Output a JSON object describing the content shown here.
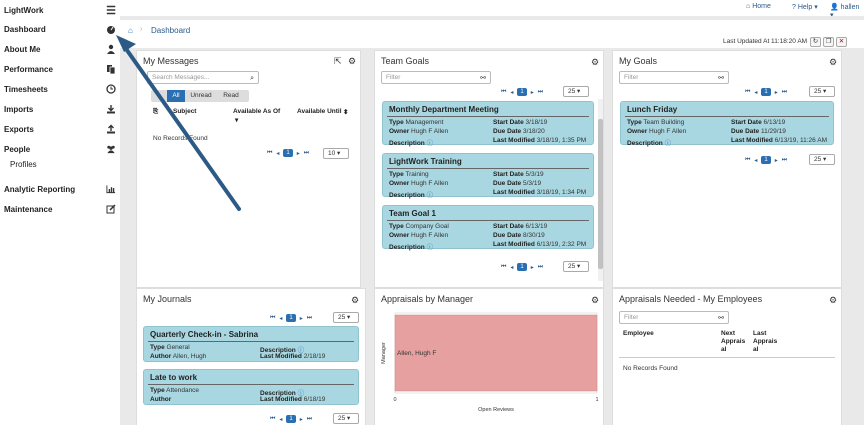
{
  "sidebar": {
    "app_name": "LightWork",
    "items": [
      {
        "label": "Dashboard",
        "icon": "dashboard-icon",
        "glyph": "◉"
      },
      {
        "label": "About Me",
        "icon": "user-icon",
        "glyph": "👤"
      },
      {
        "label": "Performance",
        "icon": "copy-icon",
        "glyph": "❐"
      },
      {
        "label": "Timesheets",
        "icon": "clock-icon",
        "glyph": "◷"
      },
      {
        "label": "Imports",
        "icon": "download-icon",
        "glyph": "⤓"
      },
      {
        "label": "Exports",
        "icon": "upload-icon",
        "glyph": "⤒"
      },
      {
        "label": "People",
        "icon": "users-icon",
        "glyph": "👥"
      },
      {
        "label": "Profiles",
        "icon": "",
        "glyph": ""
      },
      {
        "label": "Analytic Reporting",
        "icon": "bar-chart-icon",
        "glyph": "▥"
      },
      {
        "label": "Maintenance",
        "icon": "edit-icon",
        "glyph": "✎"
      }
    ]
  },
  "topbar": {
    "home": "Home",
    "help": "Help",
    "user": "hallen"
  },
  "breadcrumb": {
    "current": "Dashboard"
  },
  "last_updated": "Last Updated At 11:18:20 AM",
  "messages": {
    "title": "My Messages",
    "search_placeholder": "Search Messages...",
    "tabs": [
      "All",
      "Unread",
      "Read"
    ],
    "columns": [
      "Subject",
      "Available As Of",
      "Available Until"
    ],
    "no_records": "No Records Found",
    "page": "1",
    "page_size": "10"
  },
  "team_goals": {
    "title": "Team Goals",
    "filter_placeholder": "Filter",
    "page": "1",
    "page_size": "25",
    "cards": [
      {
        "title": "Monthly Department Meeting",
        "type": "Management",
        "owner": "Hugh F Allen",
        "start": "3/18/19",
        "due": "3/18/20",
        "modified": "3/18/19, 1:35 PM"
      },
      {
        "title": "LightWork Training",
        "type": "Training",
        "owner": "Hugh F Allen",
        "start": "5/3/19",
        "due": "5/3/19",
        "modified": "3/18/19, 1:34 PM"
      },
      {
        "title": "Team Goal 1",
        "type": "Company Goal",
        "owner": "Hugh F Allen",
        "start": "6/13/19",
        "due": "8/30/19",
        "modified": "6/13/19, 2:32 PM"
      }
    ]
  },
  "my_goals": {
    "title": "My Goals",
    "filter_placeholder": "Filter",
    "page": "1",
    "page_size": "25",
    "cards": [
      {
        "title": "Lunch Friday",
        "type": "Team Building",
        "owner": "Hugh F Allen",
        "start": "6/13/19",
        "due": "11/29/19",
        "modified": "6/13/19, 11:26 AM"
      }
    ]
  },
  "journals": {
    "title": "My Journals",
    "page": "1",
    "page_size": "25",
    "cards": [
      {
        "title": "Quarterly Check-in - Sabrina",
        "type": "General",
        "author": "Allen, Hugh",
        "modified": "2/18/19"
      },
      {
        "title": "Late to work",
        "type": "Attendance",
        "author": "",
        "modified": "6/18/19"
      }
    ]
  },
  "labels": {
    "type": "Type",
    "owner": "Owner",
    "description": "Description",
    "start_date": "Start Date",
    "due_date": "Due Date",
    "last_modified": "Last Modified",
    "author": "Author"
  },
  "appraisals_chart": {
    "title": "Appraisals by Manager"
  },
  "chart_data": {
    "type": "bar",
    "orientation": "horizontal",
    "categories": [
      "Allen, Hugh F"
    ],
    "values": [
      1
    ],
    "title": "",
    "xlabel": "Open Reviews",
    "ylabel": "Manager",
    "xlim": [
      0,
      1
    ],
    "xticks": [
      "0",
      "1"
    ],
    "bar_color": "#e6a0a0"
  },
  "appraisals_needed": {
    "title": "Appraisals Needed - My Employees",
    "filter_placeholder": "Filter",
    "columns": [
      "Employee",
      "Next Apprais al",
      "Last Apprais al"
    ],
    "no_records": "No Records Found"
  },
  "colors": {
    "accent": "#2a6fb2",
    "card": "#a9d7e1",
    "arrow": "#2c5a86"
  }
}
